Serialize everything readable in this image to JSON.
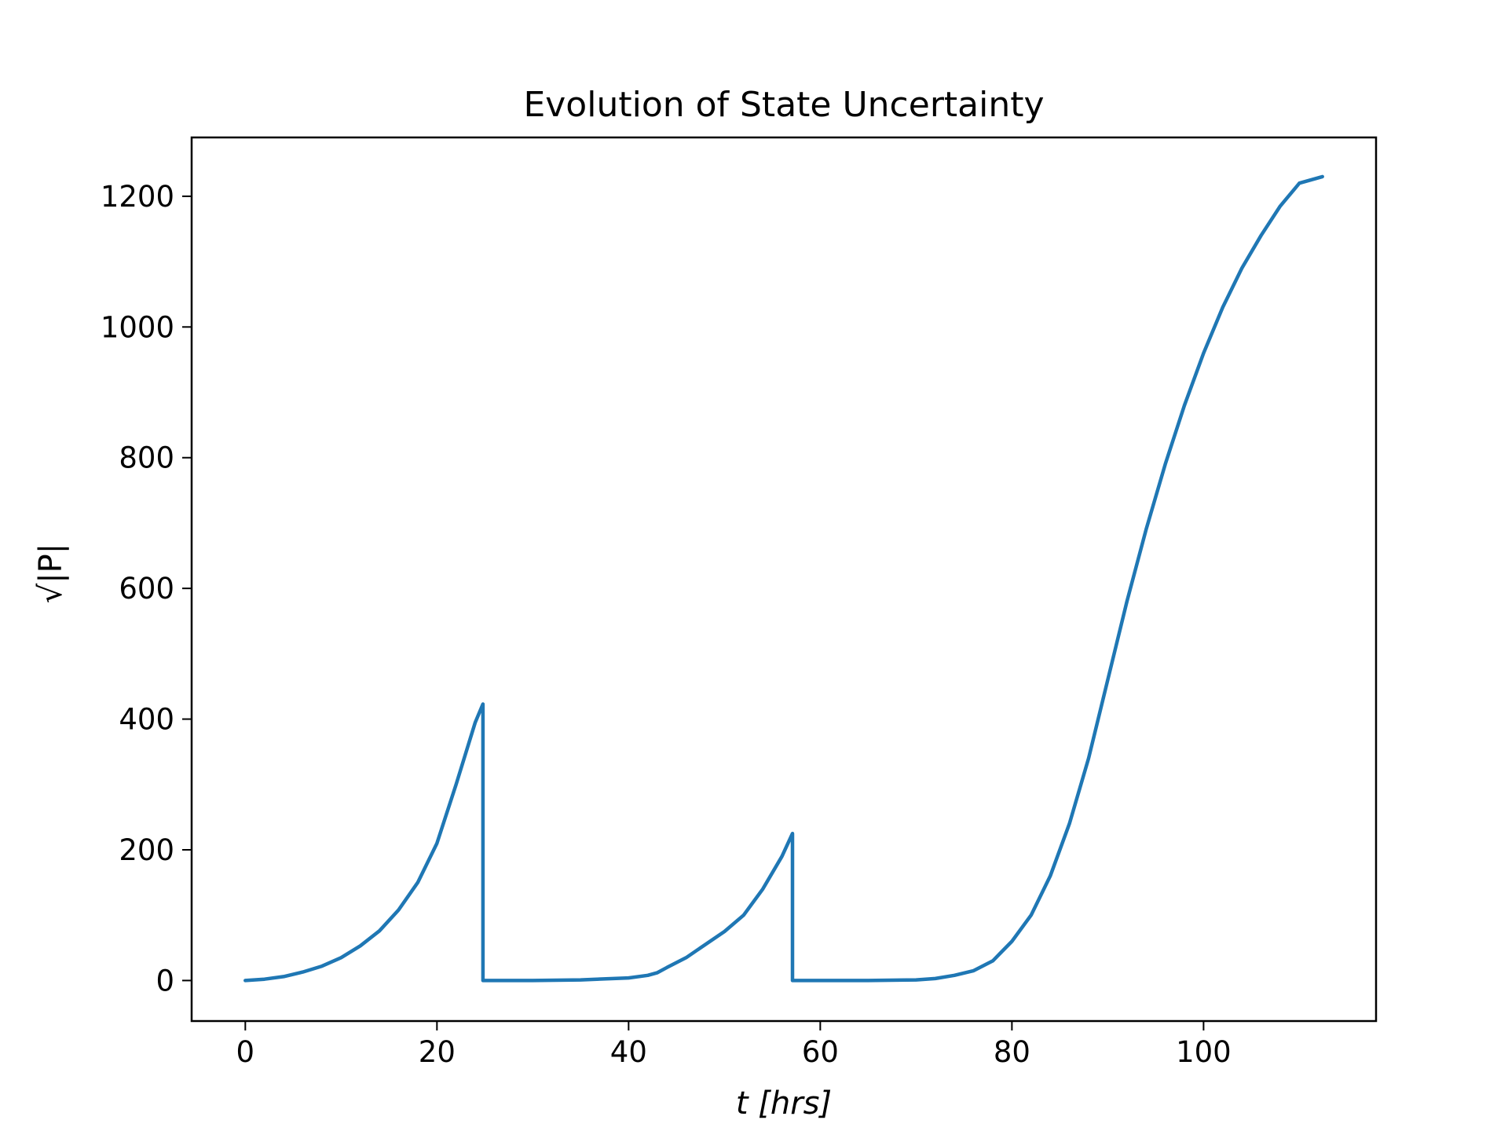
{
  "chart_data": {
    "type": "line",
    "title": "Evolution of State Uncertainty",
    "xlabel": "t [hrs]",
    "ylabel": "√|P|",
    "xlim": [
      -5.6,
      118
    ],
    "ylim": [
      -62,
      1290
    ],
    "xticks": [
      0,
      20,
      40,
      60,
      80,
      100
    ],
    "yticks": [
      0,
      200,
      400,
      600,
      800,
      1000,
      1200
    ],
    "grid": false,
    "legend": "none",
    "series": [
      {
        "color": "#1f77b4",
        "x": [
          0,
          2,
          4,
          6,
          8,
          10,
          12,
          14,
          16,
          18,
          20,
          22,
          24,
          24.8,
          24.8,
          26,
          30,
          35,
          40,
          42,
          43,
          44,
          46,
          48,
          50,
          52,
          54,
          56,
          57.1,
          57.1,
          60,
          65,
          70,
          72,
          74,
          76,
          78,
          80,
          82,
          84,
          86,
          88,
          90,
          92,
          94,
          96,
          98,
          100,
          102,
          104,
          106,
          108,
          110,
          112.4
        ],
        "y": [
          0,
          2,
          6,
          13,
          22,
          35,
          53,
          76,
          108,
          150,
          210,
          300,
          395,
          423,
          0,
          0,
          0,
          1,
          4,
          8,
          12,
          20,
          35,
          55,
          75,
          100,
          140,
          190,
          225,
          0,
          0,
          0,
          1,
          3,
          8,
          15,
          30,
          60,
          100,
          160,
          240,
          340,
          460,
          580,
          690,
          790,
          880,
          960,
          1030,
          1090,
          1140,
          1185,
          1220,
          1230
        ]
      }
    ]
  }
}
